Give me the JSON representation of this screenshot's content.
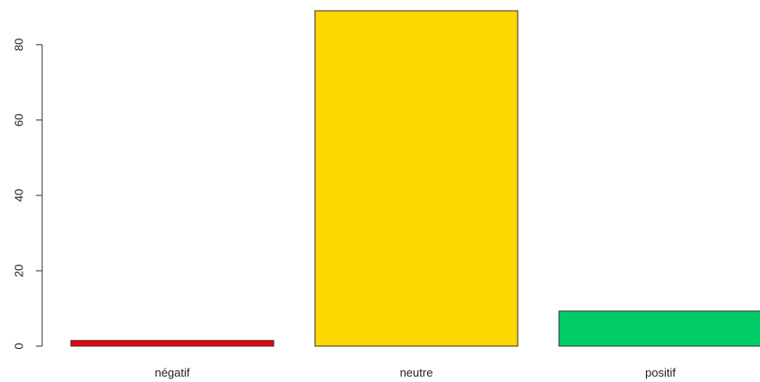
{
  "chart_data": {
    "type": "bar",
    "title": "",
    "xlabel": "",
    "ylabel": "",
    "categories": [
      "négatif",
      "neutre",
      "positif"
    ],
    "values": [
      1.5,
      89,
      9.3
    ],
    "colors": [
      "#e8000b",
      "#ffd700",
      "#00cc66"
    ],
    "bar_outline_color": "#333333",
    "ylim": [
      0,
      89
    ],
    "yticks": [
      0,
      20,
      40,
      60,
      80
    ],
    "ytick_labels": [
      "0",
      "20",
      "40",
      "60",
      "80"
    ],
    "grid": false,
    "legend": "none"
  }
}
